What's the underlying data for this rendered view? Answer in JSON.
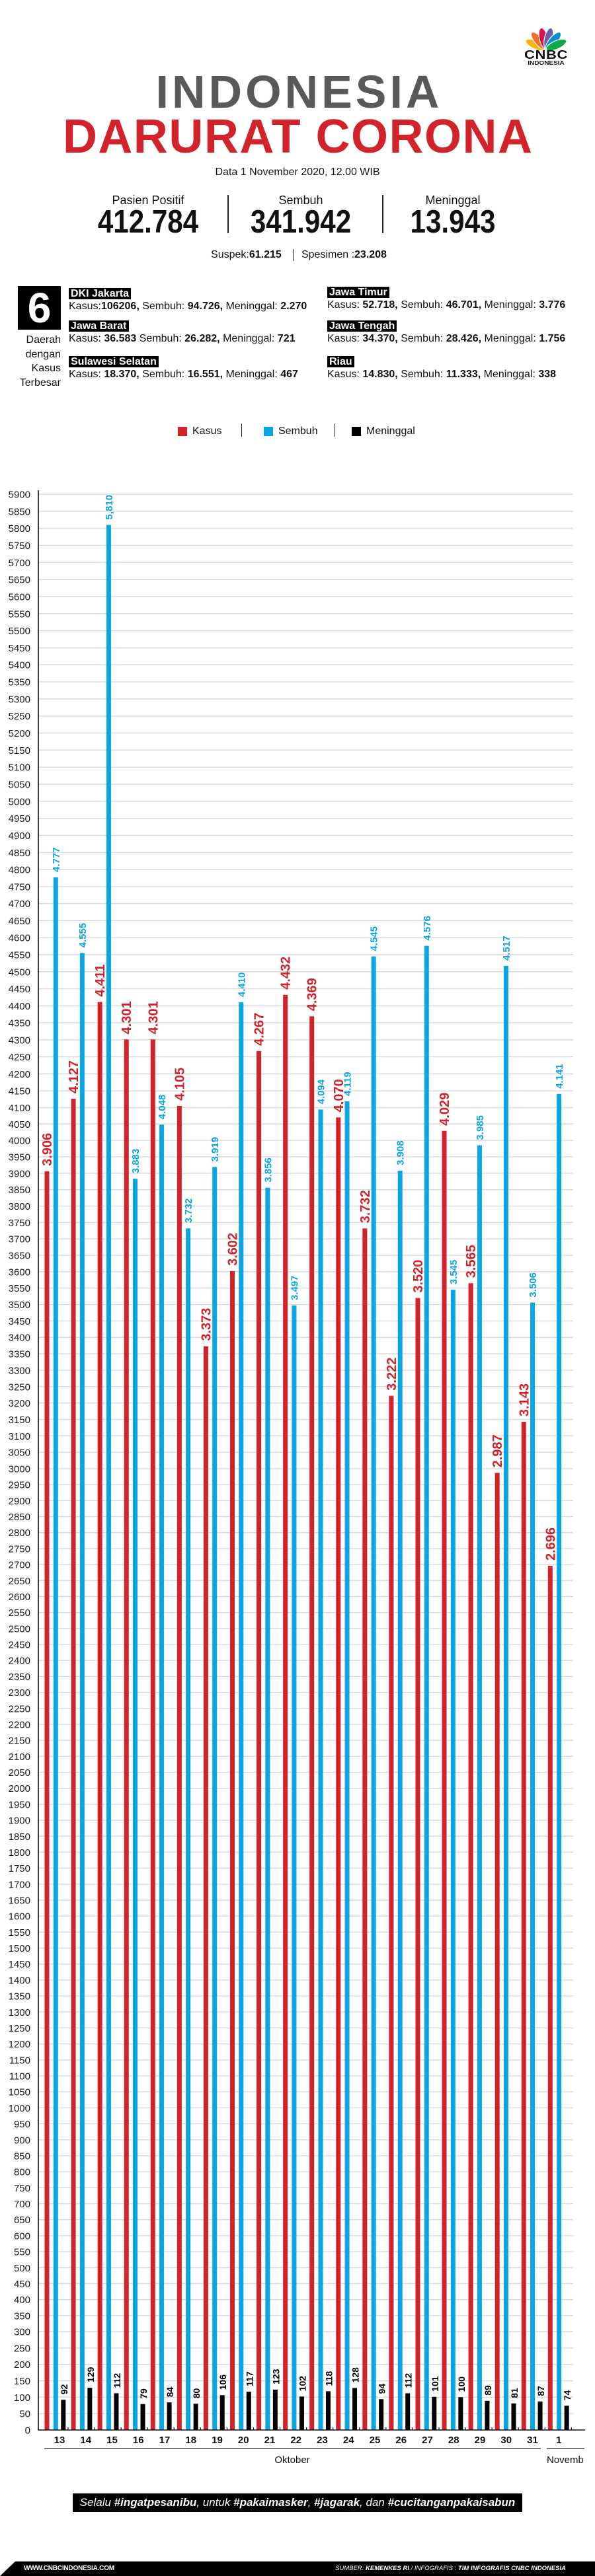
{
  "logo": {
    "brand": "CNBC",
    "sub": "INDONESIA",
    "feather_colors": [
      "#f7b512",
      "#f26f23",
      "#d5164e",
      "#6a5fa8",
      "#0a8ccf",
      "#13a84a"
    ]
  },
  "header": {
    "title_line1": "INDONESIA",
    "title_line2": "DARURAT CORONA",
    "date": "Data 1 November 2020, 12.00 WIB"
  },
  "stats": [
    {
      "label": "Pasien Positif",
      "value": "412.784"
    },
    {
      "label": "Sembuh",
      "value": "341.942"
    },
    {
      "label": "Meninggal",
      "value": "13.943"
    }
  ],
  "secondary": {
    "suspek_label": "Suspek: ",
    "suspek_value": "61.215",
    "spesimen_label": "Spesimen : ",
    "spesimen_value": "23.208"
  },
  "regions": {
    "count": "6",
    "caption": [
      "Daerah",
      "dengan",
      "Kasus",
      "Terbesar"
    ],
    "items": [
      {
        "name": "DKI Jakarta",
        "kasus_label": "Kasus:",
        "kasus": "106206,",
        "sembuh_label": " Sembuh: ",
        "sembuh": "94.726,",
        "meninggal_label": " Meninggal: ",
        "meninggal": "2.270"
      },
      {
        "name": "Jawa Timur",
        "kasus_label": "Kasus: ",
        "kasus": "52.718,",
        "sembuh_label": " Sembuh: ",
        "sembuh": "46.701,",
        "meninggal_label": " Meninggal: ",
        "meninggal": "3.776"
      },
      {
        "name": "Jawa Barat",
        "kasus_label": "Kasus: ",
        "kasus": "36.583",
        "sembuh_label": " Sembuh: ",
        "sembuh": "26.282,",
        "meninggal_label": " Meninggal: ",
        "meninggal": "721"
      },
      {
        "name": "Jawa Tengah",
        "kasus_label": "Kasus: ",
        "kasus": "34.370,",
        "sembuh_label": " Sembuh: ",
        "sembuh": "28.426,",
        "meninggal_label": " Meninggal: ",
        "meninggal": "1.756"
      },
      {
        "name": "Sulawesi Selatan",
        "kasus_label": "Kasus: ",
        "kasus": "18.370,",
        "sembuh_label": " Sembuh: ",
        "sembuh": "16.551,",
        "meninggal_label": " Meninggal: ",
        "meninggal": "467"
      },
      {
        "name": "Riau",
        "kasus_label": "Kasus: ",
        "kasus": "14.830,",
        "sembuh_label": " Sembuh: ",
        "sembuh": "11.333,",
        "meninggal_label": " Meninggal: ",
        "meninggal": "338"
      }
    ]
  },
  "legend": [
    {
      "label": "Kasus",
      "color": "#d2232a"
    },
    {
      "label": "Sembuh",
      "color": "#0aa5e3"
    },
    {
      "label": "Meninggal",
      "color": "#000000"
    }
  ],
  "chart_data": {
    "type": "bar",
    "title": "",
    "xlabel": "",
    "ylabel": "",
    "categories": [
      "13",
      "14",
      "15",
      "16",
      "17",
      "18",
      "19",
      "20",
      "21",
      "22",
      "23",
      "24",
      "25",
      "26",
      "27",
      "28",
      "29",
      "30",
      "31",
      "1"
    ],
    "category_groups": [
      {
        "label": "Oktober",
        "from": "13",
        "to": "31"
      },
      {
        "label": "Novemb",
        "from": "1",
        "to": "1"
      }
    ],
    "series": [
      {
        "name": "Kasus",
        "color": "#d2232a",
        "values": [
          3906,
          4127,
          4411,
          4301,
          4301,
          4105,
          3373,
          3602,
          4267,
          4432,
          4369,
          4070,
          3732,
          3222,
          3520,
          4029,
          3565,
          2987,
          3143,
          2696
        ],
        "labels": [
          "3.906",
          "4.127",
          "4.411",
          "4.301",
          "4.301",
          "4.105",
          "3.373",
          "3.602",
          "4.267",
          "4.432",
          "4.369",
          "4.070",
          "3.732",
          "3.222",
          "3.520",
          "4.029",
          "3.565",
          "2.987",
          "3.143",
          "2.696"
        ]
      },
      {
        "name": "Sembuh",
        "color": "#0aa5e3",
        "values": [
          4777,
          4555,
          5810,
          3883,
          4048,
          3732,
          3919,
          4410,
          3856,
          3497,
          4094,
          4119,
          4545,
          3908,
          4576,
          3545,
          3985,
          4517,
          3506,
          4141
        ],
        "labels": [
          "4.777",
          "4.555",
          "5,810",
          "3.883",
          "4.048",
          "3.732",
          "3.919",
          "4.410",
          "3.856",
          "3.497",
          "4.094",
          "4.119",
          "4.545",
          "3.908",
          "4.576",
          "3.545",
          "3.985",
          "4.517",
          "3.506",
          "4.141"
        ]
      },
      {
        "name": "Meninggal",
        "color": "#000000",
        "values": [
          92,
          129,
          112,
          79,
          84,
          80,
          106,
          117,
          123,
          102,
          118,
          128,
          94,
          112,
          101,
          100,
          89,
          81,
          87,
          74
        ],
        "labels": [
          "92",
          "129",
          "112",
          "79",
          "84",
          "80",
          "106",
          "117",
          "123",
          "102",
          "118",
          "128",
          "94",
          "112",
          "101",
          "100",
          "89",
          "81",
          "87",
          "74"
        ]
      }
    ],
    "ylim": [
      0,
      5900
    ],
    "y_ticks": [
      0,
      50,
      100,
      150,
      200,
      250,
      300,
      350,
      400,
      450,
      500,
      550,
      600,
      650,
      700,
      750,
      800,
      850,
      900,
      950,
      1000,
      1050,
      1100,
      1150,
      1200,
      1250,
      1300,
      1350,
      1400,
      1450,
      1500,
      1550,
      1600,
      1650,
      1700,
      1750,
      1800,
      1850,
      1900,
      1950,
      2000,
      2050,
      2100,
      2150,
      2200,
      2250,
      2300,
      2350,
      2400,
      2450,
      2500,
      2550,
      2600,
      2650,
      2700,
      2750,
      2800,
      2850,
      2900,
      2950,
      3000,
      3050,
      3100,
      3150,
      3200,
      3250,
      3300,
      3350,
      3400,
      3450,
      3500,
      3550,
      3600,
      3650,
      3700,
      3750,
      3800,
      3850,
      3900,
      3950,
      4000,
      4050,
      4100,
      4150,
      4200,
      4250,
      4300,
      4350,
      4400,
      4450,
      4500,
      4550,
      4600,
      4650,
      4700,
      4750,
      4800,
      4850,
      4900,
      4950,
      5000,
      5050,
      5100,
      5150,
      5200,
      5250,
      5300,
      5350,
      5400,
      5450,
      5500,
      5550,
      5600,
      5650,
      5700,
      5750,
      5800,
      5850,
      5900
    ],
    "grid": true,
    "legend": "top-center"
  },
  "banner": {
    "segments": [
      {
        "text": "Selalu "
      },
      {
        "text": "#ingatpesanibu"
      },
      {
        "text": ", untuk "
      },
      {
        "text": "#pakaimasker"
      },
      {
        "text": ", "
      },
      {
        "text": "#jagarak"
      },
      {
        "text": ", dan "
      },
      {
        "text": "#cucitanganpakaisabun"
      }
    ]
  },
  "footer": {
    "website": "WWW.CNBCINDONESIA.COM",
    "source_segments": [
      {
        "text": "SUMBER: "
      },
      {
        "text": "KEMENKES RI"
      },
      {
        "text": " / INFOGRAFIS : "
      },
      {
        "text": "TIM INFOGRAFIS CNBC INDONESIA"
      }
    ]
  }
}
